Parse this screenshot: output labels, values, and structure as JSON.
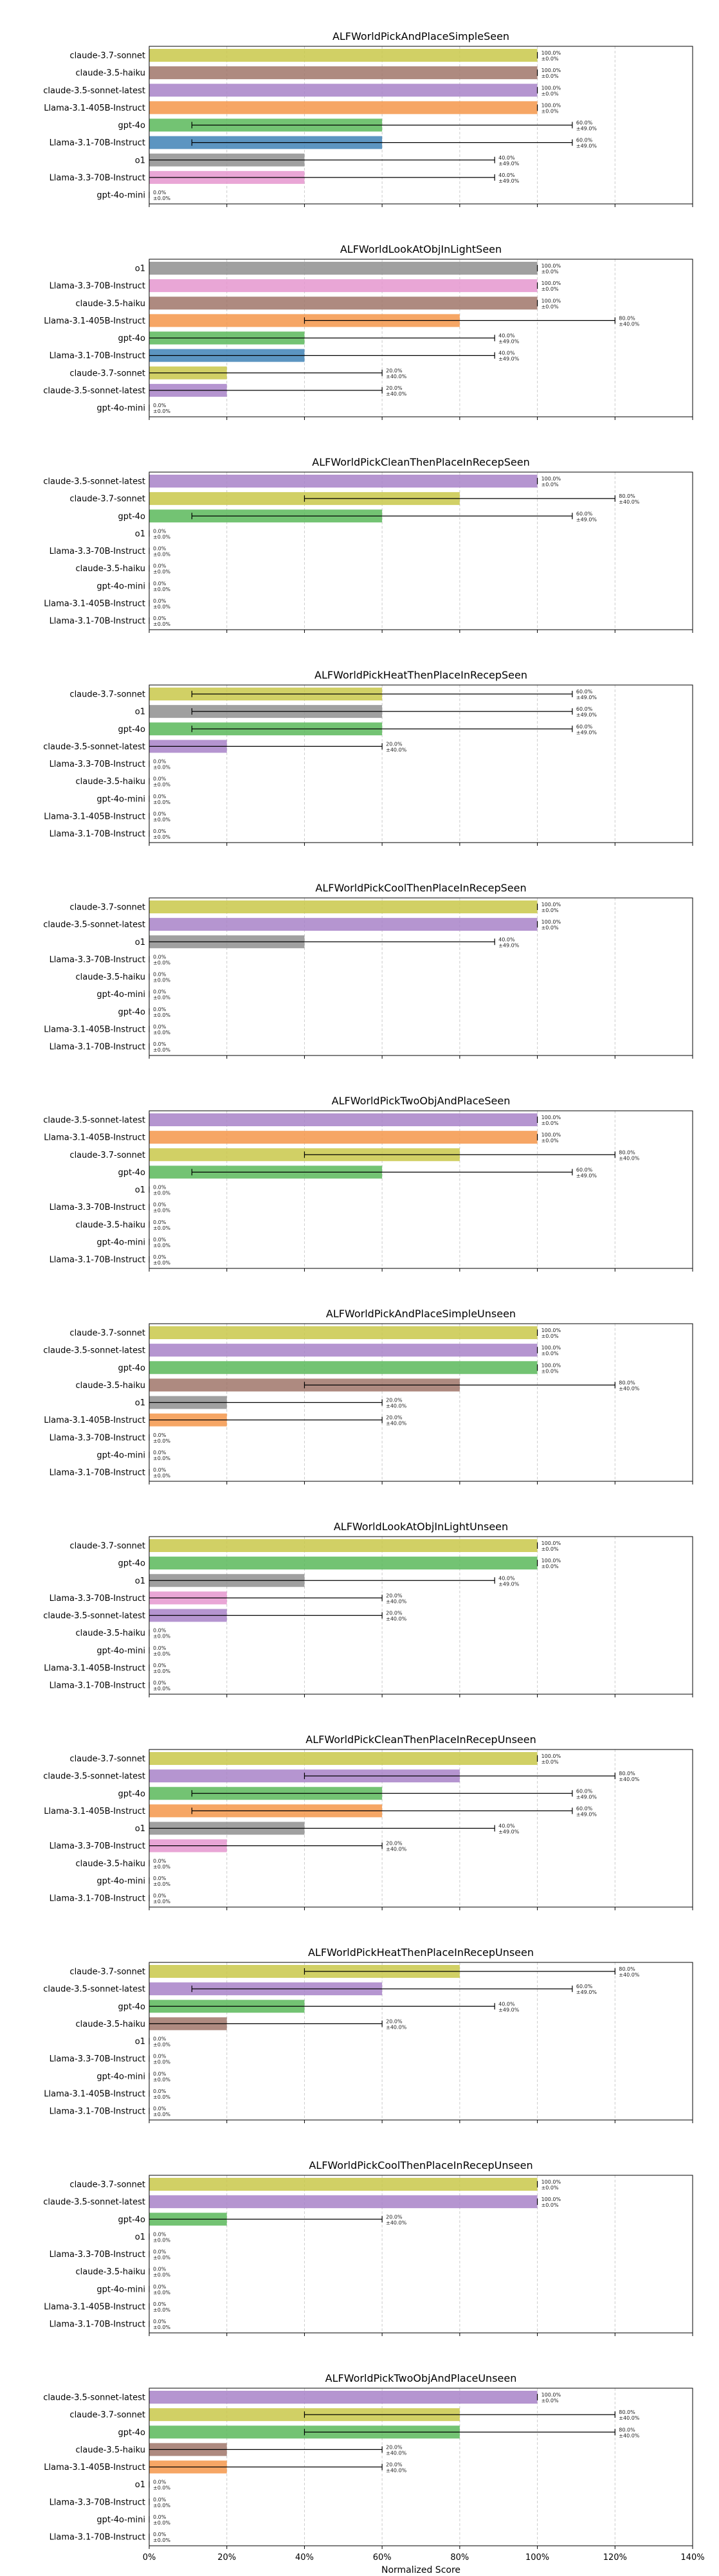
{
  "figure": {
    "xlabel": "Normalized Score",
    "xlim": [
      0,
      140
    ],
    "xticks": [
      0,
      20,
      40,
      60,
      80,
      100,
      120,
      140
    ],
    "xtick_labels": [
      "0%",
      "20%",
      "40%",
      "60%",
      "80%",
      "100%",
      "120%",
      "140%"
    ],
    "grid": "vertical dashed",
    "model_colors": {
      "claude-3.7-sonnet": "#c9c84a",
      "claude-3.5-haiku": "#a0766a",
      "claude-3.5-sonnet-latest": "#a882c8",
      "Llama-3.1-405B-Instruct": "#f5964a",
      "gpt-4o": "#5ab85a",
      "Llama-3.1-70B-Instruct": "#3f82b6",
      "o1": "#8f8f8f",
      "Llama-3.3-70B-Instruct": "#e596cf",
      "gpt-4o-mini": "#888888"
    }
  },
  "chart_data": [
    {
      "type": "bar",
      "orientation": "horizontal",
      "title": "ALFWorldPickAndPlaceSimpleSeen",
      "categories": [
        "claude-3.7-sonnet",
        "claude-3.5-haiku",
        "claude-3.5-sonnet-latest",
        "Llama-3.1-405B-Instruct",
        "gpt-4o",
        "Llama-3.1-70B-Instruct",
        "o1",
        "Llama-3.3-70B-Instruct",
        "gpt-4o-mini"
      ],
      "values": [
        100,
        100,
        100,
        100,
        60,
        60,
        40,
        40,
        0
      ],
      "errors": [
        0,
        0,
        0,
        0,
        49,
        49,
        49,
        49,
        0
      ],
      "value_labels": [
        "100.0%",
        "100.0%",
        "100.0%",
        "100.0%",
        "60.0%",
        "60.0%",
        "40.0%",
        "40.0%",
        "0.0%"
      ],
      "error_labels": [
        "±0.0%",
        "±0.0%",
        "±0.0%",
        "±0.0%",
        "±49.0%",
        "±49.0%",
        "±49.0%",
        "±49.0%",
        "±0.0%"
      ]
    },
    {
      "type": "bar",
      "orientation": "horizontal",
      "title": "ALFWorldLookAtObjInLightSeen",
      "categories": [
        "o1",
        "Llama-3.3-70B-Instruct",
        "claude-3.5-haiku",
        "Llama-3.1-405B-Instruct",
        "gpt-4o",
        "Llama-3.1-70B-Instruct",
        "claude-3.7-sonnet",
        "claude-3.5-sonnet-latest",
        "gpt-4o-mini"
      ],
      "values": [
        100,
        100,
        100,
        80,
        40,
        40,
        20,
        20,
        0
      ],
      "errors": [
        0,
        0,
        0,
        40,
        49,
        49,
        40,
        40,
        0
      ],
      "value_labels": [
        "100.0%",
        "100.0%",
        "100.0%",
        "80.0%",
        "40.0%",
        "40.0%",
        "20.0%",
        "20.0%",
        "0.0%"
      ],
      "error_labels": [
        "±0.0%",
        "±0.0%",
        "±0.0%",
        "±40.0%",
        "±49.0%",
        "±49.0%",
        "±40.0%",
        "±40.0%",
        "±0.0%"
      ]
    },
    {
      "type": "bar",
      "orientation": "horizontal",
      "title": "ALFWorldPickCleanThenPlaceInRecepSeen",
      "categories": [
        "claude-3.5-sonnet-latest",
        "claude-3.7-sonnet",
        "gpt-4o",
        "o1",
        "Llama-3.3-70B-Instruct",
        "claude-3.5-haiku",
        "gpt-4o-mini",
        "Llama-3.1-405B-Instruct",
        "Llama-3.1-70B-Instruct"
      ],
      "values": [
        100,
        80,
        60,
        0,
        0,
        0,
        0,
        0,
        0
      ],
      "errors": [
        0,
        40,
        49,
        0,
        0,
        0,
        0,
        0,
        0
      ],
      "value_labels": [
        "100.0%",
        "80.0%",
        "60.0%",
        "0.0%",
        "0.0%",
        "0.0%",
        "0.0%",
        "0.0%",
        "0.0%"
      ],
      "error_labels": [
        "±0.0%",
        "±40.0%",
        "±49.0%",
        "±0.0%",
        "±0.0%",
        "±0.0%",
        "±0.0%",
        "±0.0%",
        "±0.0%"
      ]
    },
    {
      "type": "bar",
      "orientation": "horizontal",
      "title": "ALFWorldPickHeatThenPlaceInRecepSeen",
      "categories": [
        "claude-3.7-sonnet",
        "o1",
        "gpt-4o",
        "claude-3.5-sonnet-latest",
        "Llama-3.3-70B-Instruct",
        "claude-3.5-haiku",
        "gpt-4o-mini",
        "Llama-3.1-405B-Instruct",
        "Llama-3.1-70B-Instruct"
      ],
      "values": [
        60,
        60,
        60,
        20,
        0,
        0,
        0,
        0,
        0
      ],
      "errors": [
        49,
        49,
        49,
        40,
        0,
        0,
        0,
        0,
        0
      ],
      "value_labels": [
        "60.0%",
        "60.0%",
        "60.0%",
        "20.0%",
        "0.0%",
        "0.0%",
        "0.0%",
        "0.0%",
        "0.0%"
      ],
      "error_labels": [
        "±49.0%",
        "±49.0%",
        "±49.0%",
        "±40.0%",
        "±0.0%",
        "±0.0%",
        "±0.0%",
        "±0.0%",
        "±0.0%"
      ]
    },
    {
      "type": "bar",
      "orientation": "horizontal",
      "title": "ALFWorldPickCoolThenPlaceInRecepSeen",
      "categories": [
        "claude-3.7-sonnet",
        "claude-3.5-sonnet-latest",
        "o1",
        "Llama-3.3-70B-Instruct",
        "claude-3.5-haiku",
        "gpt-4o-mini",
        "gpt-4o",
        "Llama-3.1-405B-Instruct",
        "Llama-3.1-70B-Instruct"
      ],
      "values": [
        100,
        100,
        40,
        0,
        0,
        0,
        0,
        0,
        0
      ],
      "errors": [
        0,
        0,
        49,
        0,
        0,
        0,
        0,
        0,
        0
      ],
      "value_labels": [
        "100.0%",
        "100.0%",
        "40.0%",
        "0.0%",
        "0.0%",
        "0.0%",
        "0.0%",
        "0.0%",
        "0.0%"
      ],
      "error_labels": [
        "±0.0%",
        "±0.0%",
        "±49.0%",
        "±0.0%",
        "±0.0%",
        "±0.0%",
        "±0.0%",
        "±0.0%",
        "±0.0%"
      ]
    },
    {
      "type": "bar",
      "orientation": "horizontal",
      "title": "ALFWorldPickTwoObjAndPlaceSeen",
      "categories": [
        "claude-3.5-sonnet-latest",
        "Llama-3.1-405B-Instruct",
        "claude-3.7-sonnet",
        "gpt-4o",
        "o1",
        "Llama-3.3-70B-Instruct",
        "claude-3.5-haiku",
        "gpt-4o-mini",
        "Llama-3.1-70B-Instruct"
      ],
      "values": [
        100,
        100,
        80,
        60,
        0,
        0,
        0,
        0,
        0
      ],
      "errors": [
        0,
        0,
        40,
        49,
        0,
        0,
        0,
        0,
        0
      ],
      "value_labels": [
        "100.0%",
        "100.0%",
        "80.0%",
        "60.0%",
        "0.0%",
        "0.0%",
        "0.0%",
        "0.0%",
        "0.0%"
      ],
      "error_labels": [
        "±0.0%",
        "±0.0%",
        "±40.0%",
        "±49.0%",
        "±0.0%",
        "±0.0%",
        "±0.0%",
        "±0.0%",
        "±0.0%"
      ]
    },
    {
      "type": "bar",
      "orientation": "horizontal",
      "title": "ALFWorldPickAndPlaceSimpleUnseen",
      "categories": [
        "claude-3.7-sonnet",
        "claude-3.5-sonnet-latest",
        "gpt-4o",
        "claude-3.5-haiku",
        "o1",
        "Llama-3.1-405B-Instruct",
        "Llama-3.3-70B-Instruct",
        "gpt-4o-mini",
        "Llama-3.1-70B-Instruct"
      ],
      "values": [
        100,
        100,
        100,
        80,
        20,
        20,
        0,
        0,
        0
      ],
      "errors": [
        0,
        0,
        0,
        40,
        40,
        40,
        0,
        0,
        0
      ],
      "value_labels": [
        "100.0%",
        "100.0%",
        "100.0%",
        "80.0%",
        "20.0%",
        "20.0%",
        "0.0%",
        "0.0%",
        "0.0%"
      ],
      "error_labels": [
        "±0.0%",
        "±0.0%",
        "±0.0%",
        "±40.0%",
        "±40.0%",
        "±40.0%",
        "±0.0%",
        "±0.0%",
        "±0.0%"
      ]
    },
    {
      "type": "bar",
      "orientation": "horizontal",
      "title": "ALFWorldLookAtObjInLightUnseen",
      "categories": [
        "claude-3.7-sonnet",
        "gpt-4o",
        "o1",
        "Llama-3.3-70B-Instruct",
        "claude-3.5-sonnet-latest",
        "claude-3.5-haiku",
        "gpt-4o-mini",
        "Llama-3.1-405B-Instruct",
        "Llama-3.1-70B-Instruct"
      ],
      "values": [
        100,
        100,
        40,
        20,
        20,
        0,
        0,
        0,
        0
      ],
      "errors": [
        0,
        0,
        49,
        40,
        40,
        0,
        0,
        0,
        0
      ],
      "value_labels": [
        "100.0%",
        "100.0%",
        "40.0%",
        "20.0%",
        "20.0%",
        "0.0%",
        "0.0%",
        "0.0%",
        "0.0%"
      ],
      "error_labels": [
        "±0.0%",
        "±0.0%",
        "±49.0%",
        "±40.0%",
        "±40.0%",
        "±0.0%",
        "±0.0%",
        "±0.0%",
        "±0.0%"
      ]
    },
    {
      "type": "bar",
      "orientation": "horizontal",
      "title": "ALFWorldPickCleanThenPlaceInRecepUnseen",
      "categories": [
        "claude-3.7-sonnet",
        "claude-3.5-sonnet-latest",
        "gpt-4o",
        "Llama-3.1-405B-Instruct",
        "o1",
        "Llama-3.3-70B-Instruct",
        "claude-3.5-haiku",
        "gpt-4o-mini",
        "Llama-3.1-70B-Instruct"
      ],
      "values": [
        100,
        80,
        60,
        60,
        40,
        20,
        0,
        0,
        0
      ],
      "errors": [
        0,
        40,
        49,
        49,
        49,
        40,
        0,
        0,
        0
      ],
      "value_labels": [
        "100.0%",
        "80.0%",
        "60.0%",
        "60.0%",
        "40.0%",
        "20.0%",
        "0.0%",
        "0.0%",
        "0.0%"
      ],
      "error_labels": [
        "±0.0%",
        "±40.0%",
        "±49.0%",
        "±49.0%",
        "±49.0%",
        "±40.0%",
        "±0.0%",
        "±0.0%",
        "±0.0%"
      ]
    },
    {
      "type": "bar",
      "orientation": "horizontal",
      "title": "ALFWorldPickHeatThenPlaceInRecepUnseen",
      "categories": [
        "claude-3.7-sonnet",
        "claude-3.5-sonnet-latest",
        "gpt-4o",
        "claude-3.5-haiku",
        "o1",
        "Llama-3.3-70B-Instruct",
        "gpt-4o-mini",
        "Llama-3.1-405B-Instruct",
        "Llama-3.1-70B-Instruct"
      ],
      "values": [
        80,
        60,
        40,
        20,
        0,
        0,
        0,
        0,
        0
      ],
      "errors": [
        40,
        49,
        49,
        40,
        0,
        0,
        0,
        0,
        0
      ],
      "value_labels": [
        "80.0%",
        "60.0%",
        "40.0%",
        "20.0%",
        "0.0%",
        "0.0%",
        "0.0%",
        "0.0%",
        "0.0%"
      ],
      "error_labels": [
        "±40.0%",
        "±49.0%",
        "±49.0%",
        "±40.0%",
        "±0.0%",
        "±0.0%",
        "±0.0%",
        "±0.0%",
        "±0.0%"
      ]
    },
    {
      "type": "bar",
      "orientation": "horizontal",
      "title": "ALFWorldPickCoolThenPlaceInRecepUnseen",
      "categories": [
        "claude-3.7-sonnet",
        "claude-3.5-sonnet-latest",
        "gpt-4o",
        "o1",
        "Llama-3.3-70B-Instruct",
        "claude-3.5-haiku",
        "gpt-4o-mini",
        "Llama-3.1-405B-Instruct",
        "Llama-3.1-70B-Instruct"
      ],
      "values": [
        100,
        100,
        20,
        0,
        0,
        0,
        0,
        0,
        0
      ],
      "errors": [
        0,
        0,
        40,
        0,
        0,
        0,
        0,
        0,
        0
      ],
      "value_labels": [
        "100.0%",
        "100.0%",
        "20.0%",
        "0.0%",
        "0.0%",
        "0.0%",
        "0.0%",
        "0.0%",
        "0.0%"
      ],
      "error_labels": [
        "±0.0%",
        "±0.0%",
        "±40.0%",
        "±0.0%",
        "±0.0%",
        "±0.0%",
        "±0.0%",
        "±0.0%",
        "±0.0%"
      ]
    },
    {
      "type": "bar",
      "orientation": "horizontal",
      "title": "ALFWorldPickTwoObjAndPlaceUnseen",
      "categories": [
        "claude-3.5-sonnet-latest",
        "claude-3.7-sonnet",
        "gpt-4o",
        "claude-3.5-haiku",
        "Llama-3.1-405B-Instruct",
        "o1",
        "Llama-3.3-70B-Instruct",
        "gpt-4o-mini",
        "Llama-3.1-70B-Instruct"
      ],
      "values": [
        100,
        80,
        80,
        20,
        20,
        0,
        0,
        0,
        0
      ],
      "errors": [
        0,
        40,
        40,
        40,
        40,
        0,
        0,
        0,
        0
      ],
      "value_labels": [
        "100.0%",
        "80.0%",
        "80.0%",
        "20.0%",
        "20.0%",
        "0.0%",
        "0.0%",
        "0.0%",
        "0.0%"
      ],
      "error_labels": [
        "±0.0%",
        "±40.0%",
        "±40.0%",
        "±40.0%",
        "±40.0%",
        "±0.0%",
        "±0.0%",
        "±0.0%",
        "±0.0%"
      ]
    }
  ]
}
